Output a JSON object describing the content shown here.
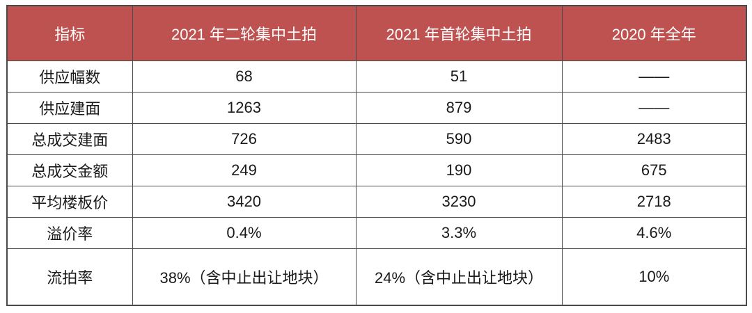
{
  "chart_data": {
    "type": "table",
    "columns": [
      "指标",
      "2021 年二轮集中土拍",
      "2021 年首轮集中土拍",
      "2020 年全年"
    ],
    "rows": [
      [
        "供应幅数",
        "68",
        "51",
        "——"
      ],
      [
        "供应建面",
        "1263",
        "879",
        "——"
      ],
      [
        "总成交建面",
        "726",
        "590",
        "2483"
      ],
      [
        "总成交金额",
        "249",
        "190",
        "675"
      ],
      [
        "平均楼板价",
        "3420",
        "3230",
        "2718"
      ],
      [
        "溢价率",
        "0.4%",
        "3.3%",
        "4.6%"
      ],
      [
        "流拍率",
        "38%（含中止出让地块）",
        "24%（含中止出让地块）",
        "10%"
      ]
    ]
  },
  "colors": {
    "header_bg": "#bd5250",
    "header_text": "#ffffff",
    "body_text": "#1a1a1a",
    "border": "#4a4a4a"
  }
}
